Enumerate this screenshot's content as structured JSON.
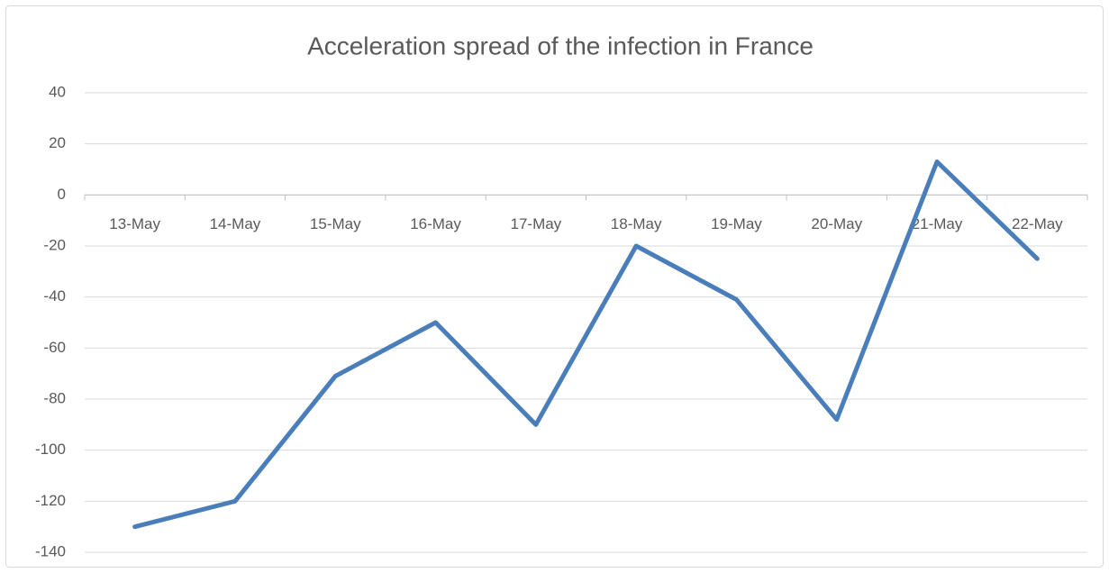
{
  "chart_data": {
    "type": "line",
    "title": "Acceleration  spread of the infection in France",
    "categories": [
      "13-May",
      "14-May",
      "15-May",
      "16-May",
      "17-May",
      "18-May",
      "19-May",
      "20-May",
      "21-May",
      "22-May"
    ],
    "values": [
      -130,
      -120,
      -71,
      -50,
      -90,
      -20,
      -41,
      -88,
      13,
      -25
    ],
    "color": "#4a7ebb",
    "ylim": [
      -140,
      40
    ],
    "yticks": [
      -140,
      -120,
      -100,
      -80,
      -60,
      -40,
      -20,
      0,
      20,
      40
    ],
    "grid": true
  }
}
